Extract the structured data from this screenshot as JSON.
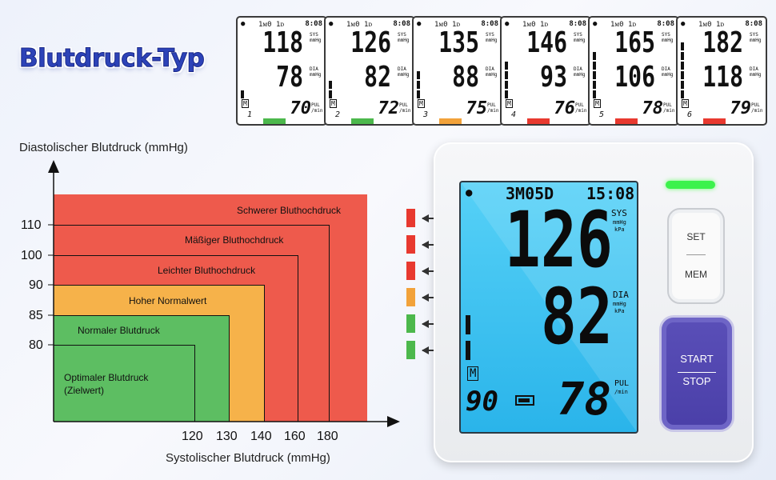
{
  "title": "Blutdruck-Typ",
  "cards": [
    {
      "mem": "1ᴍ0 1ᴅ",
      "time": "8:08",
      "sys": "118",
      "dia": "78",
      "pul": "70",
      "num": "1",
      "bars": 1,
      "color": "#4cb84c"
    },
    {
      "mem": "1ᴍ0 1ᴅ",
      "time": "8:08",
      "sys": "126",
      "dia": "82",
      "pul": "72",
      "num": "2",
      "bars": 2,
      "color": "#4cb84c"
    },
    {
      "mem": "1ᴍ0 1ᴅ",
      "time": "8:08",
      "sys": "135",
      "dia": "88",
      "pul": "75",
      "num": "3",
      "bars": 3,
      "color": "#f2a23a"
    },
    {
      "mem": "1ᴍ0 1ᴅ",
      "time": "8:08",
      "sys": "146",
      "dia": "93",
      "pul": "76",
      "num": "4",
      "bars": 4,
      "color": "#e8392f"
    },
    {
      "mem": "1ᴍ0 1ᴅ",
      "time": "8:08",
      "sys": "165",
      "dia": "106",
      "pul": "78",
      "num": "5",
      "bars": 5,
      "color": "#e8392f"
    },
    {
      "mem": "1ᴍ0 1ᴅ",
      "time": "8:08",
      "sys": "182",
      "dia": "118",
      "pul": "79",
      "num": "6",
      "bars": 6,
      "color": "#e8392f"
    }
  ],
  "card_units": {
    "sys": "SYS mmHg",
    "dia": "DIA mmHg",
    "pul": "PUL /min"
  },
  "chart": {
    "ylabel": "Diastolischer Blutdruck (mmHg)",
    "xlabel": "Systolischer Blutdruck (mmHg)",
    "yticks": [
      "110",
      "100",
      "90",
      "85",
      "80"
    ],
    "xticks": [
      "120",
      "130",
      "140",
      "160",
      "180"
    ],
    "zones": [
      {
        "label": "Schwerer Bluthochdruck",
        "color": "#ee5a4c"
      },
      {
        "label": "Mäßiger Bluthochdruck",
        "color": "#ee5a4c"
      },
      {
        "label": "Leichter Bluthochdruck",
        "color": "#ee5a4c"
      },
      {
        "label": "Hoher Normalwert",
        "color": "#f6b24a"
      },
      {
        "label": "Normaler Blutdruck",
        "color": "#5dbe62"
      },
      {
        "label": "Optimaler Blutdruck (Zielwert)",
        "color": "#5dbe62"
      }
    ]
  },
  "indicators": [
    "#e8392f",
    "#e8392f",
    "#e8392f",
    "#f2a23a",
    "#4cb84c",
    "#4cb84c"
  ],
  "device": {
    "date": "3M05D",
    "time": "15:08",
    "sys": "126",
    "dia": "82",
    "pul": "78",
    "sys_unit1": "SYS",
    "sys_unit2": "mmHg",
    "sys_unit3": "kPa",
    "dia_unit1": "DIA",
    "dia_unit2": "mmHg",
    "dia_unit3": "kPa",
    "pul_unit1": "PUL",
    "pul_unit2": "/min",
    "mem": "M",
    "count": "90",
    "set_label": "SET",
    "mem_label": "MEM",
    "start_label": "START",
    "stop_label": "STOP"
  }
}
